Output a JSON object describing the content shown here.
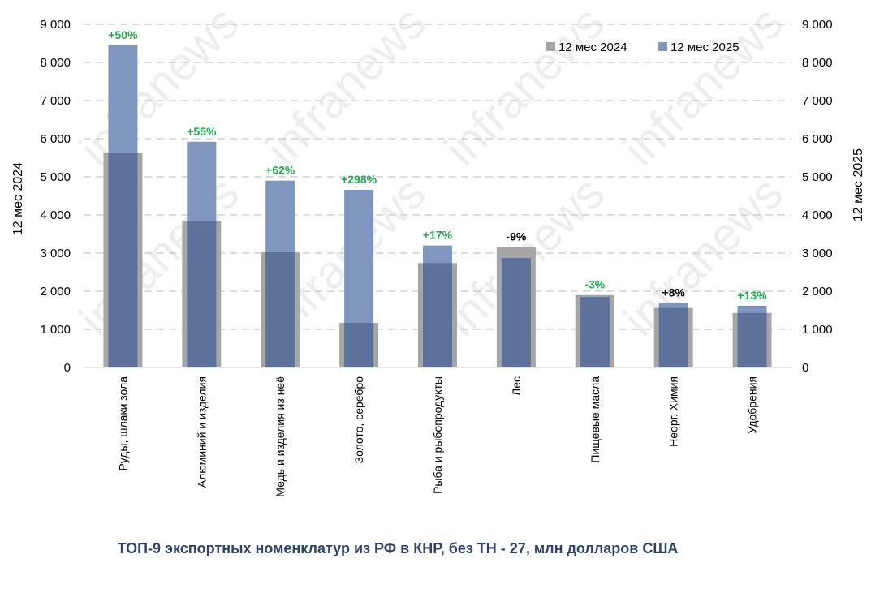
{
  "chart_data": {
    "type": "bar",
    "title": "ТОП-9 экспортных номенклатур из РФ в КНР, без ТН - 27, млн долларов США",
    "ylabel_left": "12 мес 2024",
    "ylabel_right": "12 мес 2025",
    "ylim": [
      0,
      9000
    ],
    "yticks": [
      "0",
      "1 000",
      "2 000",
      "3 000",
      "4 000",
      "5 000",
      "6 000",
      "7 000",
      "8 000",
      "9 000"
    ],
    "grid": true,
    "legend_position": "top-right",
    "categories": [
      "Руды, шлаки зола",
      "Алюминий и изделия",
      "Медь и изделия из неё",
      "Золото, серебро",
      "Рыба и рыбопродукты",
      "Лес",
      "Пищевые масла",
      "Неорг. Химия",
      "Удобрения"
    ],
    "series": [
      {
        "name": "12 мес 2024",
        "color": "#a6a6a6",
        "values": [
          5630,
          3830,
          3020,
          1170,
          2740,
          3160,
          1900,
          1560,
          1430
        ]
      },
      {
        "name": "12 мес 2025",
        "color": "#7f96bf",
        "values": [
          8450,
          5920,
          4900,
          4660,
          3200,
          2870,
          1850,
          1690,
          1620
        ]
      }
    ],
    "annotations": [
      {
        "text": "+50%",
        "color": "#1aab4a"
      },
      {
        "text": "+55%",
        "color": "#1aab4a"
      },
      {
        "text": "+62%",
        "color": "#1aab4a"
      },
      {
        "text": "+298%",
        "color": "#1aab4a"
      },
      {
        "text": "+17%",
        "color": "#1aab4a"
      },
      {
        "text": "-9%",
        "color": "#000000"
      },
      {
        "text": "-3%",
        "color": "#1aab4a"
      },
      {
        "text": "+8%",
        "color": "#000000"
      },
      {
        "text": "+13%",
        "color": "#1aab4a"
      }
    ],
    "overlap_color": "#5d729b",
    "watermark": "infranews"
  }
}
